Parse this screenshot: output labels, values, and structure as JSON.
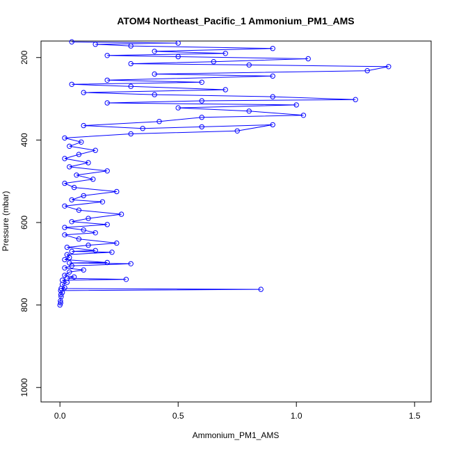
{
  "chart_data": {
    "type": "line",
    "title": "ATOM4 Northeast_Pacific_1 Ammonium_PM1_AMS",
    "xlabel": "Ammonium_PM1_AMS",
    "ylabel": "Pressure (mbar)",
    "xlim": [
      -0.08,
      1.57
    ],
    "ylim": [
      1035,
      160
    ],
    "y_reversed": true,
    "grid": false,
    "legend": "none",
    "x_ticks": [
      0.0,
      0.5,
      1.0,
      1.5
    ],
    "x_tick_labels": [
      "0.0",
      "0.5",
      "1.0",
      "1.5"
    ],
    "y_ticks": [
      200,
      400,
      600,
      800,
      1000
    ],
    "y_tick_labels": [
      "200",
      "400",
      "600",
      "800",
      "1000"
    ],
    "series": [
      {
        "color": "#0000ff",
        "marker": "open-circle",
        "line": true,
        "points": [
          [
            0.0,
            800
          ],
          [
            0.003,
            795
          ],
          [
            0.002,
            790
          ],
          [
            0.005,
            780
          ],
          [
            0.004,
            775
          ],
          [
            0.01,
            770
          ],
          [
            0.003,
            765
          ],
          [
            0.85,
            762
          ],
          [
            0.005,
            760
          ],
          [
            0.02,
            758
          ],
          [
            0.01,
            750
          ],
          [
            0.03,
            745
          ],
          [
            0.01,
            740
          ],
          [
            0.28,
            738
          ],
          [
            0.03,
            735
          ],
          [
            0.06,
            732
          ],
          [
            0.02,
            728
          ],
          [
            0.04,
            720
          ],
          [
            0.1,
            715
          ],
          [
            0.02,
            710
          ],
          [
            0.05,
            705
          ],
          [
            0.3,
            700
          ],
          [
            0.04,
            698
          ],
          [
            0.2,
            697
          ],
          [
            0.02,
            690
          ],
          [
            0.04,
            685
          ],
          [
            0.03,
            678
          ],
          [
            0.22,
            672
          ],
          [
            0.05,
            670
          ],
          [
            0.15,
            668
          ],
          [
            0.03,
            660
          ],
          [
            0.12,
            655
          ],
          [
            0.24,
            650
          ],
          [
            0.08,
            640
          ],
          [
            0.02,
            630
          ],
          [
            0.15,
            625
          ],
          [
            0.1,
            618
          ],
          [
            0.02,
            612
          ],
          [
            0.2,
            605
          ],
          [
            0.05,
            598
          ],
          [
            0.12,
            590
          ],
          [
            0.26,
            580
          ],
          [
            0.08,
            570
          ],
          [
            0.02,
            560
          ],
          [
            0.18,
            550
          ],
          [
            0.05,
            545
          ],
          [
            0.1,
            535
          ],
          [
            0.24,
            525
          ],
          [
            0.06,
            515
          ],
          [
            0.02,
            505
          ],
          [
            0.14,
            495
          ],
          [
            0.07,
            485
          ],
          [
            0.2,
            475
          ],
          [
            0.04,
            465
          ],
          [
            0.12,
            455
          ],
          [
            0.02,
            445
          ],
          [
            0.08,
            435
          ],
          [
            0.15,
            425
          ],
          [
            0.04,
            415
          ],
          [
            0.09,
            405
          ],
          [
            0.02,
            395
          ],
          [
            0.3,
            385
          ],
          [
            0.75,
            378
          ],
          [
            0.9,
            363
          ],
          [
            0.6,
            368
          ],
          [
            0.35,
            372
          ],
          [
            0.1,
            365
          ],
          [
            0.42,
            355
          ],
          [
            0.6,
            345
          ],
          [
            1.03,
            340
          ],
          [
            0.8,
            330
          ],
          [
            0.5,
            322
          ],
          [
            1.0,
            315
          ],
          [
            0.2,
            310
          ],
          [
            0.6,
            305
          ],
          [
            1.25,
            302
          ],
          [
            0.9,
            295
          ],
          [
            0.4,
            290
          ],
          [
            0.1,
            285
          ],
          [
            0.7,
            278
          ],
          [
            0.3,
            270
          ],
          [
            0.05,
            265
          ],
          [
            0.6,
            260
          ],
          [
            0.2,
            255
          ],
          [
            0.9,
            245
          ],
          [
            0.4,
            240
          ],
          [
            1.3,
            232
          ],
          [
            1.39,
            222
          ],
          [
            0.8,
            218
          ],
          [
            0.3,
            215
          ],
          [
            0.65,
            210
          ],
          [
            1.05,
            203
          ],
          [
            0.5,
            198
          ],
          [
            0.2,
            195
          ],
          [
            0.7,
            190
          ],
          [
            0.4,
            185
          ],
          [
            0.9,
            178
          ],
          [
            0.3,
            172
          ],
          [
            0.15,
            168
          ],
          [
            0.5,
            165
          ],
          [
            0.05,
            162
          ]
        ]
      }
    ]
  }
}
